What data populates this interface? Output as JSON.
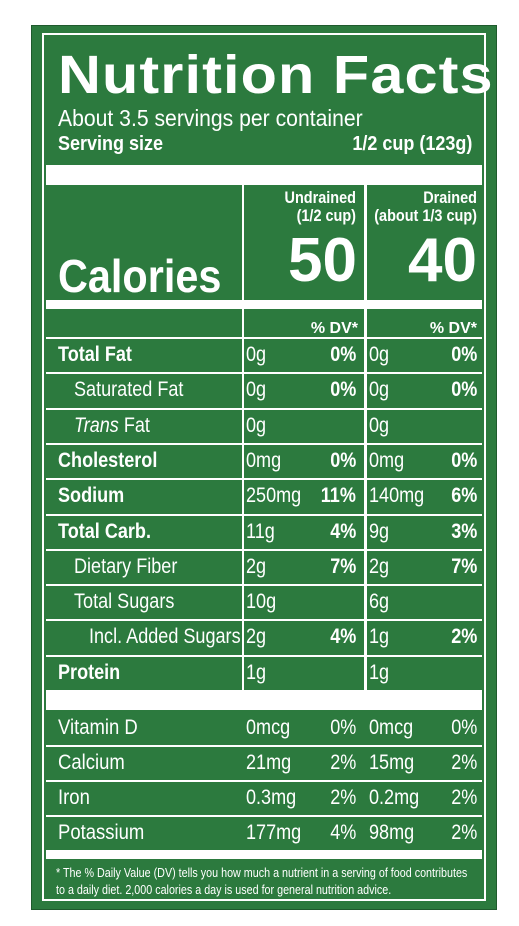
{
  "label": {
    "title": "Nutrition Facts",
    "servings_per_container": "About 3.5 servings per container",
    "serving_size_label": "Serving size",
    "serving_size_value": "1/2 cup (123g)",
    "calories_label": "Calories",
    "columns": [
      {
        "line1": "Undrained",
        "line2": "(1/2 cup)",
        "calories": "50"
      },
      {
        "line1": "Drained",
        "line2": "(about 1/3 cup)",
        "calories": "40"
      }
    ],
    "dv_header": "% DV*",
    "nutrients": [
      {
        "name": "Total Fat",
        "a1": "0g",
        "p1": "0%",
        "a2": "0g",
        "p2": "0%"
      },
      {
        "name": "Saturated Fat",
        "a1": "0g",
        "p1": "0%",
        "a2": "0g",
        "p2": "0%"
      },
      {
        "name_italic": "Trans",
        "name_rest": " Fat",
        "a1": "0g",
        "p1": "",
        "a2": "0g",
        "p2": ""
      },
      {
        "name": "Cholesterol",
        "a1": "0mg",
        "p1": "0%",
        "a2": "0mg",
        "p2": "0%"
      },
      {
        "name": "Sodium",
        "a1": "250mg",
        "p1": "11%",
        "a2": "140mg",
        "p2": "6%"
      },
      {
        "name": "Total Carb.",
        "a1": "11g",
        "p1": "4%",
        "a2": "9g",
        "p2": "3%"
      },
      {
        "name": "Dietary Fiber",
        "a1": "2g",
        "p1": "7%",
        "a2": "2g",
        "p2": "7%"
      },
      {
        "name": "Total Sugars",
        "a1": "10g",
        "p1": "",
        "a2": "6g",
        "p2": ""
      },
      {
        "name": "Incl. Added Sugars",
        "a1": "2g",
        "p1": "4%",
        "a2": "1g",
        "p2": "2%"
      },
      {
        "name": "Protein",
        "a1": "1g",
        "p1": "",
        "a2": "1g",
        "p2": ""
      }
    ],
    "vitamins": [
      {
        "name": "Vitamin D",
        "a1": "0mcg",
        "p1": "0%",
        "a2": "0mcg",
        "p2": "0%"
      },
      {
        "name": "Calcium",
        "a1": "21mg",
        "p1": "2%",
        "a2": "15mg",
        "p2": "2%"
      },
      {
        "name": "Iron",
        "a1": "0.3mg",
        "p1": "2%",
        "a2": "0.2mg",
        "p2": "2%"
      },
      {
        "name": "Potassium",
        "a1": "177mg",
        "p1": "4%",
        "a2": "98mg",
        "p2": "2%"
      }
    ],
    "footnote_line1": "* The % Daily Value (DV) tells you how much a nutrient in a serving of food contributes",
    "footnote_line2": "to a daily diet. 2,000 calories a day is used for general nutrition advice."
  },
  "colors": {
    "background": "#2c7a3e",
    "text": "#ffffff"
  }
}
